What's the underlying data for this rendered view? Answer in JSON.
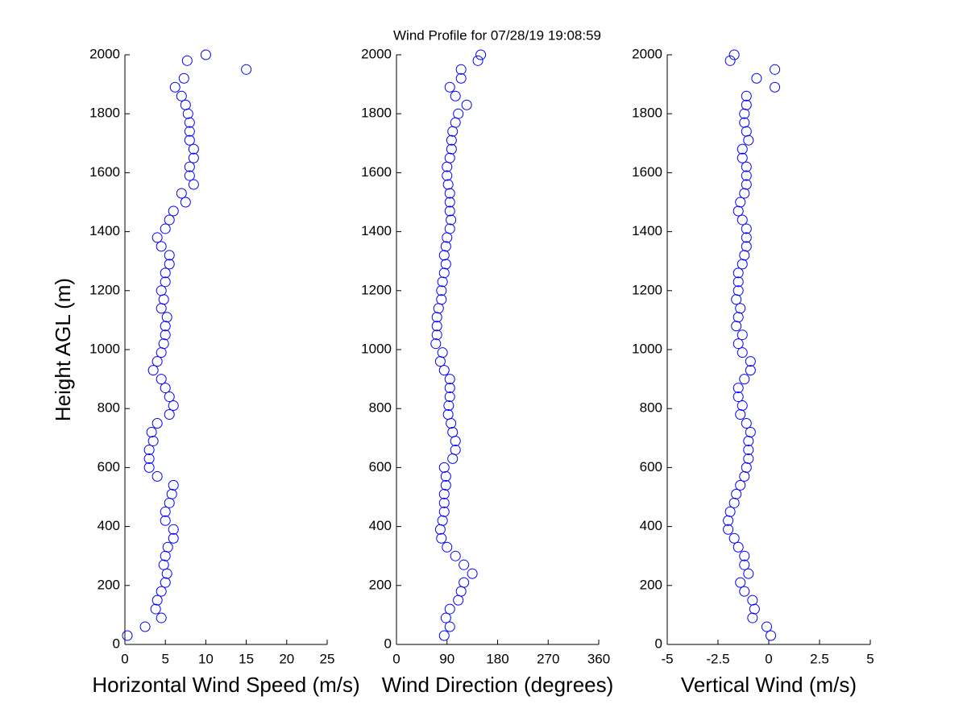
{
  "chart_data": [
    {
      "type": "scatter",
      "title": "Wind Profile for  07/28/19 19:08:59",
      "x_label": "Horizontal Wind Speed (m/s)",
      "y_label": "Height AGL (m)",
      "color": "#0000ff",
      "xlim": [
        0,
        25
      ],
      "xticks": [
        0,
        5,
        10,
        15,
        20,
        25
      ],
      "ylim": [
        0,
        2000
      ],
      "yticks": [
        0,
        200,
        400,
        600,
        800,
        1000,
        1200,
        1400,
        1600,
        1800,
        2000
      ],
      "x": [
        0.3,
        2.5,
        4.5,
        3.8,
        4,
        4.5,
        5,
        5.2,
        4.8,
        5,
        5.3,
        6,
        6,
        5,
        5,
        5.5,
        5.8,
        6,
        4,
        3,
        3,
        3,
        3.5,
        3.3,
        4,
        5.5,
        6,
        5.5,
        5,
        4.5,
        3.5,
        4,
        4.5,
        4.8,
        5,
        5,
        5.2,
        4.5,
        4.8,
        4.5,
        5,
        5,
        5.5,
        5.5,
        4.5,
        4,
        5,
        5.5,
        6,
        7.5,
        7,
        8.5,
        8,
        8,
        8.5,
        8.5,
        8,
        8,
        8,
        7.8,
        7.5,
        7,
        6.2,
        7.3,
        15,
        7.7,
        10
      ],
      "values": [
        30,
        60,
        90,
        120,
        150,
        180,
        210,
        240,
        270,
        300,
        330,
        360,
        390,
        420,
        450,
        480,
        510,
        540,
        570,
        600,
        630,
        660,
        690,
        720,
        750,
        780,
        810,
        840,
        870,
        900,
        930,
        960,
        990,
        1020,
        1050,
        1080,
        1110,
        1140,
        1170,
        1200,
        1230,
        1260,
        1290,
        1320,
        1350,
        1380,
        1410,
        1440,
        1470,
        1500,
        1530,
        1560,
        1590,
        1620,
        1650,
        1680,
        1710,
        1740,
        1770,
        1800,
        1830,
        1860,
        1890,
        1920,
        1950,
        1980,
        2000
      ]
    },
    {
      "type": "scatter",
      "x_label": "Wind Direction (degrees)",
      "color": "#0000ff",
      "xlim": [
        0,
        360
      ],
      "xticks": [
        0,
        90,
        180,
        270,
        360
      ],
      "ylim": [
        0,
        2000
      ],
      "yticks": [
        0,
        200,
        400,
        600,
        800,
        1000,
        1200,
        1400,
        1600,
        1800,
        2000
      ],
      "x": [
        85,
        95,
        88,
        95,
        110,
        115,
        120,
        135,
        120,
        105,
        90,
        80,
        78,
        82,
        85,
        85,
        85,
        88,
        88,
        85,
        100,
        105,
        105,
        100,
        97,
        92,
        93,
        95,
        95,
        95,
        85,
        78,
        82,
        70,
        72,
        72,
        72,
        75,
        80,
        80,
        82,
        85,
        88,
        85,
        88,
        90,
        95,
        97,
        95,
        95,
        95,
        92,
        90,
        90,
        95,
        98,
        98,
        100,
        105,
        110,
        125,
        105,
        95,
        115,
        115,
        145,
        150
      ],
      "values": [
        30,
        60,
        90,
        120,
        150,
        180,
        210,
        240,
        270,
        300,
        330,
        360,
        390,
        420,
        450,
        480,
        510,
        540,
        570,
        600,
        630,
        660,
        690,
        720,
        750,
        780,
        810,
        840,
        870,
        900,
        930,
        960,
        990,
        1020,
        1050,
        1080,
        1110,
        1140,
        1170,
        1200,
        1230,
        1260,
        1290,
        1320,
        1350,
        1380,
        1410,
        1440,
        1470,
        1500,
        1530,
        1560,
        1590,
        1620,
        1650,
        1680,
        1710,
        1740,
        1770,
        1800,
        1830,
        1860,
        1890,
        1920,
        1950,
        1980,
        2000
      ]
    },
    {
      "type": "scatter",
      "x_label": "Vertical Wind (m/s)",
      "color": "#0000ff",
      "xlim": [
        -5,
        5
      ],
      "xticks": [
        -5,
        -2.5,
        0,
        2.5,
        5
      ],
      "ylim": [
        0,
        2000
      ],
      "yticks": [
        0,
        200,
        400,
        600,
        800,
        1000,
        1200,
        1400,
        1600,
        1800,
        2000
      ],
      "x": [
        0.1,
        -0.1,
        -0.8,
        -0.7,
        -0.8,
        -1.2,
        -1.4,
        -1.0,
        -1.2,
        -1.2,
        -1.5,
        -1.7,
        -2.0,
        -2.0,
        -1.9,
        -1.7,
        -1.6,
        -1.4,
        -1.2,
        -1.1,
        -1.0,
        -1.0,
        -1.0,
        -0.9,
        -1.1,
        -1.4,
        -1.3,
        -1.5,
        -1.5,
        -1.2,
        -0.9,
        -0.9,
        -1.3,
        -1.5,
        -1.3,
        -1.6,
        -1.5,
        -1.4,
        -1.6,
        -1.5,
        -1.5,
        -1.5,
        -1.3,
        -1.2,
        -1.1,
        -1.1,
        -1.1,
        -1.3,
        -1.5,
        -1.4,
        -1.2,
        -1.1,
        -1.1,
        -1.1,
        -1.3,
        -1.3,
        -1.0,
        -1.1,
        -1.2,
        -1.2,
        -1.1,
        -1.1,
        0.3,
        -0.6,
        0.3,
        -1.9,
        -1.7
      ],
      "values": [
        30,
        60,
        90,
        120,
        150,
        180,
        210,
        240,
        270,
        300,
        330,
        360,
        390,
        420,
        450,
        480,
        510,
        540,
        570,
        600,
        630,
        660,
        690,
        720,
        750,
        780,
        810,
        840,
        870,
        900,
        930,
        960,
        990,
        1020,
        1050,
        1080,
        1110,
        1140,
        1170,
        1200,
        1230,
        1260,
        1290,
        1320,
        1350,
        1380,
        1410,
        1440,
        1470,
        1500,
        1530,
        1560,
        1590,
        1620,
        1650,
        1680,
        1710,
        1740,
        1770,
        1800,
        1830,
        1860,
        1890,
        1920,
        1950,
        1980,
        2000
      ]
    }
  ]
}
